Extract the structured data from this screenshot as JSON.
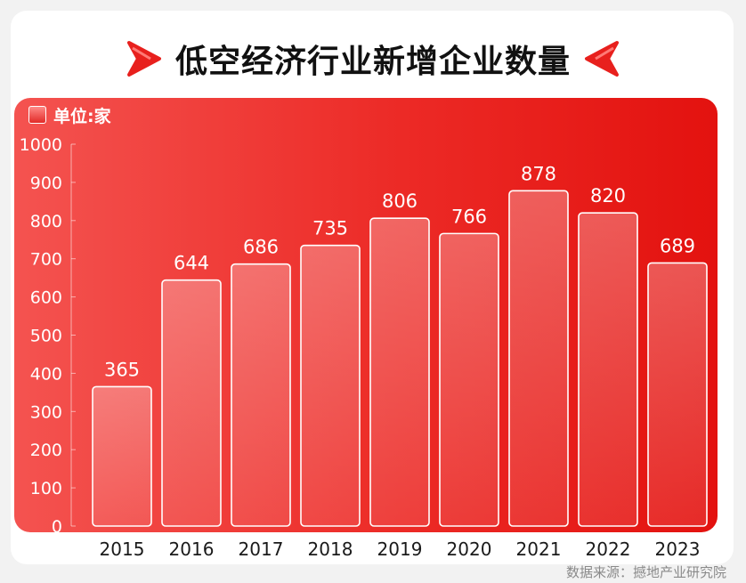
{
  "header": {
    "title": "低空经济行业新增企业数量"
  },
  "legend": {
    "unit_label": "单位:家"
  },
  "footer": {
    "source": "数据来源：撼地产业研究院"
  },
  "colors": {
    "accent": "#e8201d",
    "panel_start": "#f45350",
    "panel_end": "#e3120f"
  },
  "chart_data": {
    "type": "bar",
    "title": "低空经济行业新增企业数量",
    "xlabel": "",
    "ylabel": "单位:家",
    "categories": [
      "2015",
      "2016",
      "2017",
      "2018",
      "2019",
      "2020",
      "2021",
      "2022",
      "2023"
    ],
    "values": [
      365,
      644,
      686,
      735,
      806,
      766,
      878,
      820,
      689
    ],
    "yticks": [
      0,
      100,
      200,
      300,
      400,
      500,
      600,
      700,
      800,
      900,
      1000
    ],
    "ylim": [
      0,
      1000
    ],
    "grid": false,
    "legend": "top-left"
  }
}
